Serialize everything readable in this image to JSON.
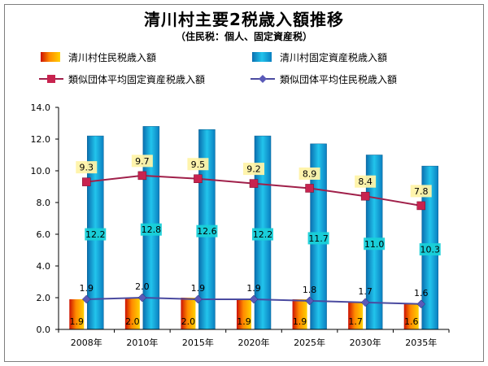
{
  "title": "清川村主要2税歳入額推移",
  "subtitle": "（住民税：個人、固定資産税）",
  "colors": {
    "resident_bar": "#ff6600",
    "property_bar": "#19b7e0",
    "similar_property_line": "#a0204a",
    "similar_resident_line": "#4b4ba0"
  },
  "chart_data": {
    "type": "bar",
    "categories": [
      "2008年",
      "2010年",
      "2015年",
      "2020年",
      "2025年",
      "2030年",
      "2035年"
    ],
    "ylim": [
      0,
      14
    ],
    "yticks": [
      "0.0",
      "2.0",
      "4.0",
      "6.0",
      "8.0",
      "10.0",
      "12.0",
      "14.0"
    ],
    "legend_position": "top",
    "series": [
      {
        "name": "清川村住民税歳入額",
        "kind": "bar",
        "values": [
          1.9,
          2.0,
          2.0,
          1.9,
          1.9,
          1.7,
          1.6
        ],
        "labels": [
          "1.9",
          "2.0",
          "2.0",
          "1.9",
          "1.9",
          "1.7",
          "1.6"
        ]
      },
      {
        "name": "清川村固定資産税歳入額",
        "kind": "bar",
        "values": [
          12.2,
          12.8,
          12.6,
          12.2,
          11.7,
          11.0,
          10.3
        ],
        "labels": [
          "12.2",
          "12.8",
          "12.6",
          "12.2",
          "11.7",
          "11.0",
          "10.3"
        ]
      },
      {
        "name": "類似団体平均固定資産税歳入額",
        "kind": "line",
        "values": [
          9.3,
          9.7,
          9.5,
          9.2,
          8.9,
          8.4,
          7.8
        ],
        "labels": [
          "9.3",
          "9.7",
          "9.5",
          "9.2",
          "8.9",
          "8.4",
          "7.8"
        ]
      },
      {
        "name": "類似団体平均住民税歳入額",
        "kind": "line",
        "values": [
          1.9,
          2.0,
          1.9,
          1.9,
          1.8,
          1.7,
          1.6
        ],
        "labels": [
          "1.9",
          "2.0",
          "1.9",
          "1.9",
          "1.8",
          "1.7",
          "1.6"
        ]
      }
    ]
  }
}
